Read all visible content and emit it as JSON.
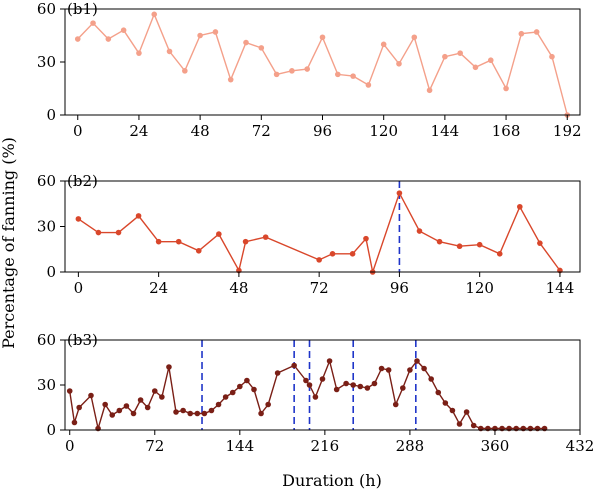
{
  "chart_data": [
    {
      "type": "line",
      "panel_label": "(b1)",
      "color": "#f4a08a",
      "xlim": [
        -5,
        197
      ],
      "ylim": [
        0,
        60
      ],
      "xticks": [
        0,
        24,
        48,
        72,
        96,
        120,
        144,
        168,
        192
      ],
      "yticks": [
        0,
        30,
        60
      ],
      "series": [
        {
          "x": [
            0,
            6,
            12,
            18,
            24,
            30,
            36,
            42,
            48,
            54,
            60,
            66,
            72,
            78,
            84,
            90,
            96,
            102,
            108,
            114,
            120,
            126,
            132,
            138,
            144,
            150,
            156,
            162,
            168,
            174,
            180,
            186,
            192
          ],
          "y": [
            43,
            52,
            43,
            48,
            35,
            57,
            36,
            25,
            45,
            47,
            20,
            41,
            38,
            23,
            25,
            26,
            44,
            23,
            22,
            17,
            40,
            29,
            44,
            14,
            33,
            35,
            27,
            31,
            15,
            46,
            47,
            33,
            0
          ]
        }
      ]
    },
    {
      "type": "line",
      "panel_label": "(b2)",
      "color": "#d9472b",
      "xlim": [
        -4,
        150
      ],
      "ylim": [
        0,
        60
      ],
      "xticks": [
        0,
        24,
        48,
        72,
        96,
        120,
        144
      ],
      "yticks": [
        0,
        30,
        60
      ],
      "vlines": [
        96
      ],
      "series": [
        {
          "x": [
            0,
            6,
            12,
            18,
            24,
            30,
            36,
            42,
            48,
            50,
            56,
            72,
            76,
            82,
            86,
            88,
            96,
            102,
            108,
            114,
            120,
            126,
            132,
            138,
            144
          ],
          "y": [
            35,
            26,
            26,
            37,
            20,
            20,
            14,
            25,
            1,
            20,
            23,
            8,
            12,
            12,
            22,
            0,
            52,
            27,
            20,
            17,
            18,
            12,
            43,
            19,
            1
          ]
        }
      ]
    },
    {
      "type": "line",
      "panel_label": "(b3)",
      "color": "#7a1f16",
      "xlim": [
        -4,
        432
      ],
      "ylim": [
        0,
        60
      ],
      "xticks": [
        0,
        72,
        144,
        216,
        288,
        360,
        432
      ],
      "yticks": [
        0,
        30,
        60
      ],
      "vlines": [
        112,
        190,
        203,
        240,
        293
      ],
      "series": [
        {
          "x": [
            0,
            4,
            8,
            18,
            24,
            30,
            36,
            42,
            48,
            54,
            60,
            66,
            72,
            78,
            84,
            90,
            96,
            102,
            108,
            114,
            120,
            126,
            132,
            138,
            144,
            150,
            156,
            162,
            168,
            176,
            190,
            200,
            203,
            208,
            214,
            220,
            226,
            234,
            240,
            246,
            252,
            258,
            264,
            270,
            276,
            282,
            288,
            294,
            300,
            306,
            312,
            318,
            324,
            330,
            336,
            342,
            348,
            354,
            360,
            366,
            372,
            378,
            384,
            390,
            396,
            402
          ],
          "y": [
            26,
            5,
            15,
            23,
            1,
            17,
            10,
            13,
            16,
            11,
            20,
            15,
            26,
            22,
            42,
            12,
            13,
            11,
            11,
            11,
            13,
            17,
            22,
            25,
            29,
            33,
            27,
            11,
            17,
            38,
            43,
            33,
            30,
            22,
            34,
            46,
            27,
            31,
            30,
            29,
            28,
            31,
            41,
            40,
            17,
            28,
            40,
            46,
            41,
            34,
            25,
            18,
            13,
            4,
            12,
            3,
            1,
            1,
            1,
            1,
            1,
            1,
            1,
            1,
            1,
            1
          ]
        }
      ]
    }
  ],
  "shared_ylabel": "Percentage of fanning (%)",
  "shared_xlabel": "Duration (h)",
  "vline_color": "#1f35c9"
}
